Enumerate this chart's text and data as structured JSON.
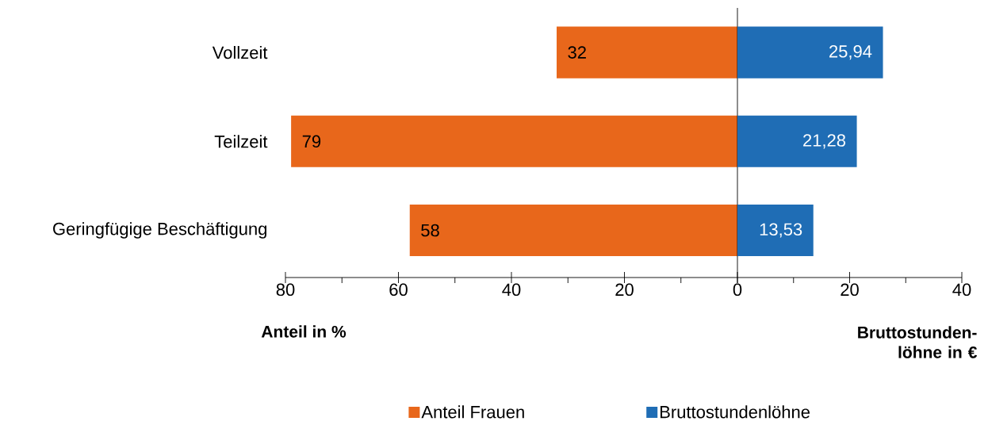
{
  "chart_data": [
    {
      "type": "bar",
      "orientation": "horizontal",
      "categories": [
        "Vollzeit",
        "Teilzeit",
        "Geringfügige Beschäftigung"
      ],
      "series": [
        {
          "name": "Anteil Frauen",
          "color": "#e8671b",
          "values": [
            32,
            79,
            58
          ],
          "value_labels": [
            "32",
            "79",
            "58"
          ]
        }
      ],
      "xlim": [
        80,
        0
      ],
      "xticks": [
        80,
        {
          "value": 70,
          "label": null
        },
        60,
        {
          "value": 50,
          "label": null
        },
        40,
        {
          "value": 30,
          "label": null
        },
        20,
        {
          "value": 10,
          "label": null
        },
        0
      ],
      "xlabel": "Anteil in %",
      "legend": "bottom"
    },
    {
      "type": "bar",
      "orientation": "horizontal",
      "categories": [
        null,
        null,
        null
      ],
      "tick_labels": "x",
      "series": [
        {
          "name": "Bruttostundenlöhne",
          "color": "#1f6db5",
          "values": [
            25.94,
            21.28,
            13.53
          ],
          "value_labels": [
            "25,94",
            "21,28",
            "13,53"
          ]
        }
      ],
      "xlim": [
        0,
        40
      ],
      "xticks": [
        {
          "value": 0,
          "label": null
        },
        {
          "value": 10,
          "label": null
        },
        20,
        {
          "value": 30,
          "label": null
        },
        40
      ],
      "xlabel": "Bruttostunden- löhne in €",
      "legend": "bottom"
    }
  ]
}
